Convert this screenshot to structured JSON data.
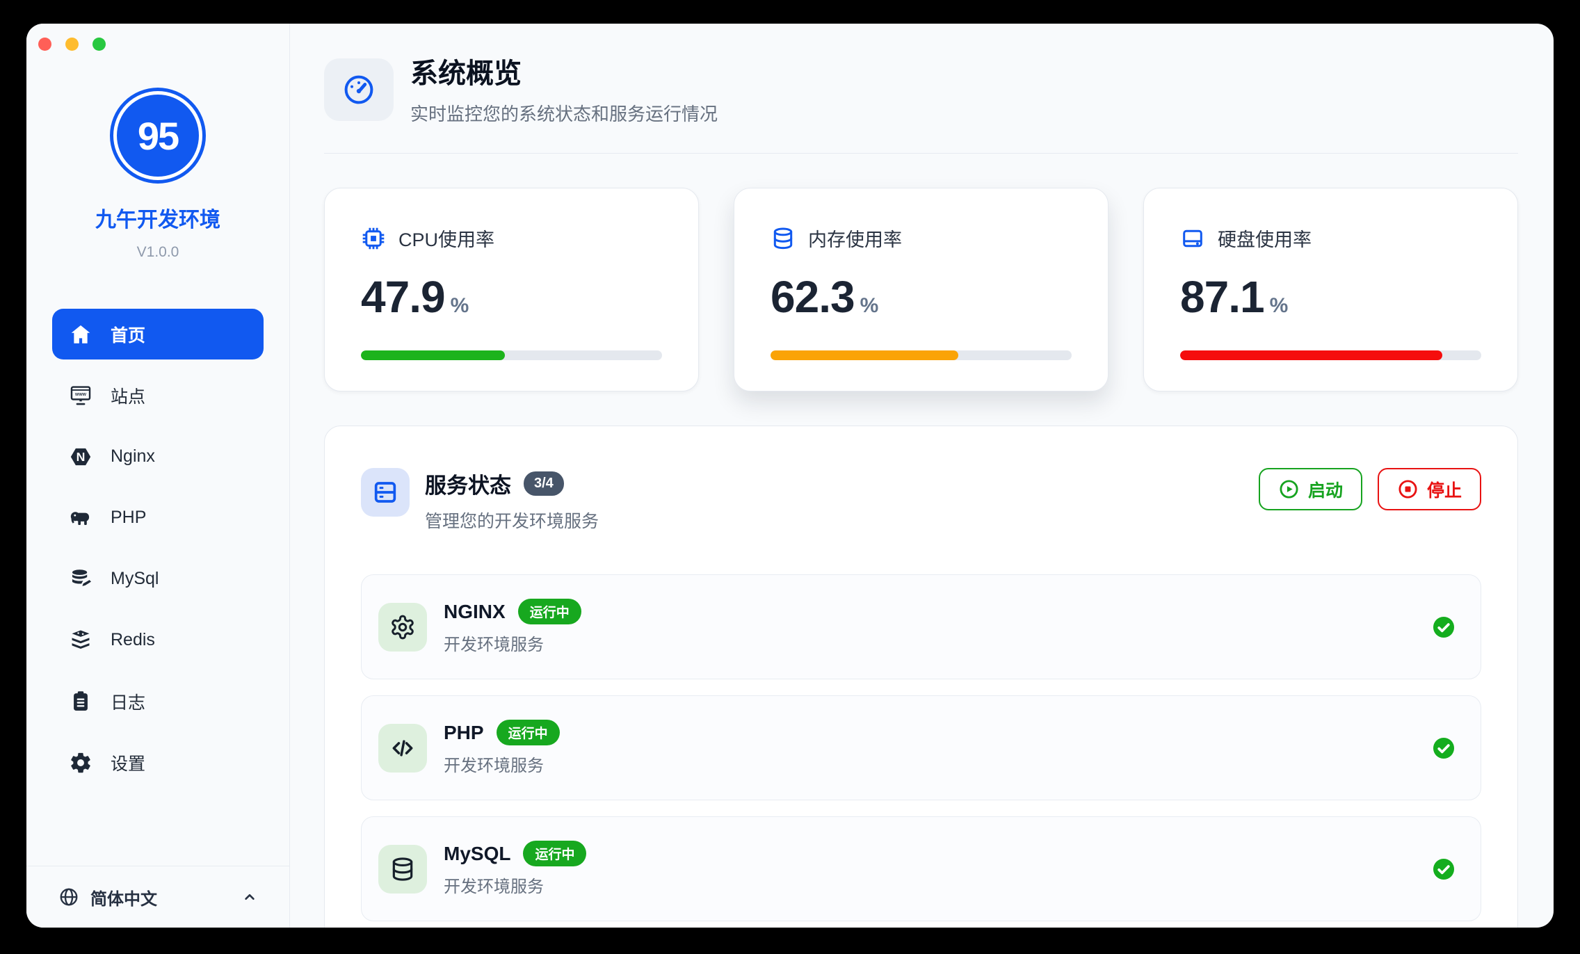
{
  "window": {
    "traffic_lights": [
      "close",
      "minimize",
      "maximize"
    ]
  },
  "sidebar": {
    "logo_text": "95",
    "app_name": "九午开发环境",
    "version": "V1.0.0",
    "nav": [
      {
        "label": "首页",
        "icon": "home-icon",
        "active": true
      },
      {
        "label": "站点",
        "icon": "monitor-icon",
        "active": false
      },
      {
        "label": "Nginx",
        "icon": "nginx-hexagon-icon",
        "active": false
      },
      {
        "label": "PHP",
        "icon": "php-elephant-icon",
        "active": false
      },
      {
        "label": "MySql",
        "icon": "mysql-database-icon",
        "active": false
      },
      {
        "label": "Redis",
        "icon": "redis-stack-icon",
        "active": false
      },
      {
        "label": "日志",
        "icon": "log-clipboard-icon",
        "active": false
      },
      {
        "label": "设置",
        "icon": "settings-gear-icon",
        "active": false
      }
    ],
    "language": {
      "label": "简体中文",
      "icon": "globe-icon"
    }
  },
  "header": {
    "title": "系统概览",
    "subtitle": "实时监控您的系统状态和服务运行情况",
    "icon": "gauge-icon"
  },
  "metrics": [
    {
      "label": "CPU使用率",
      "value": "47.9",
      "unit": "%",
      "percent": 47.9,
      "color": "#1cb31c",
      "icon": "cpu-icon"
    },
    {
      "label": "内存使用率",
      "value": "62.3",
      "unit": "%",
      "percent": 62.3,
      "color": "#faa306",
      "icon": "memory-icon"
    },
    {
      "label": "硬盘使用率",
      "value": "87.1",
      "unit": "%",
      "percent": 87.1,
      "color": "#f50d0d",
      "icon": "disk-icon"
    }
  ],
  "services": {
    "title": "服务状态",
    "badge": "3/4",
    "subtitle": "管理您的开发环境服务",
    "start_button": "启动",
    "stop_button": "停止",
    "rows": [
      {
        "name": "NGINX",
        "status": "运行中",
        "desc": "开发环境服务",
        "icon": "cog-icon"
      },
      {
        "name": "PHP",
        "status": "运行中",
        "desc": "开发环境服务",
        "icon": "code-icon"
      },
      {
        "name": "MySQL",
        "status": "运行中",
        "desc": "开发环境服务",
        "icon": "database-icon"
      }
    ]
  },
  "colors": {
    "accent_blue": "#1159f0",
    "success_green": "#17a81f",
    "warning_orange": "#faa306",
    "danger_red": "#e81212",
    "badge_slate": "#475569"
  }
}
